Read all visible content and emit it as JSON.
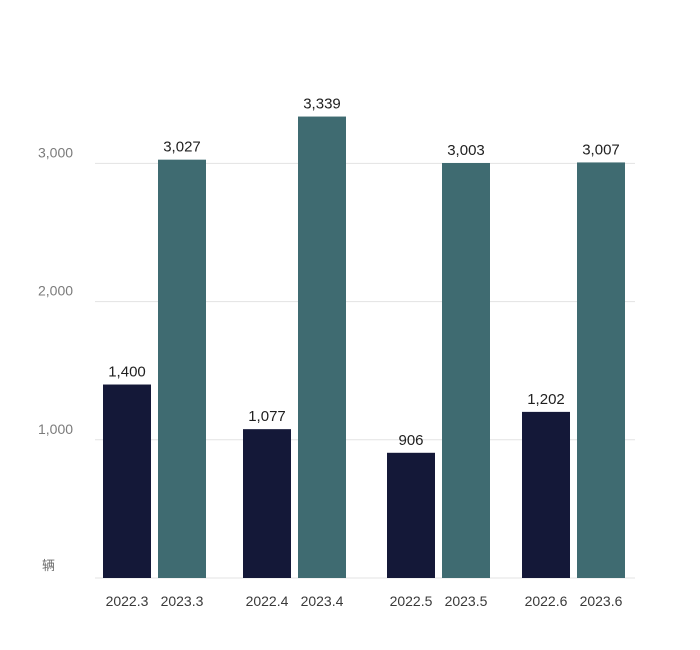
{
  "chart_data": {
    "type": "bar",
    "unit_label": "辆",
    "ylim": [
      0,
      3500
    ],
    "y_ticks": [
      {
        "value": 1000,
        "label": "1,000"
      },
      {
        "value": 2000,
        "label": "2,000"
      },
      {
        "value": 3000,
        "label": "3,000"
      }
    ],
    "grid": true,
    "legend": "none",
    "groups": [
      {
        "bars": [
          {
            "category": "2022.3",
            "value": 1400,
            "label": "1,400",
            "color": "#141838"
          },
          {
            "category": "2023.3",
            "value": 3027,
            "label": "3,027",
            "color": "#3f6b71"
          }
        ]
      },
      {
        "bars": [
          {
            "category": "2022.4",
            "value": 1077,
            "label": "1,077",
            "color": "#141838"
          },
          {
            "category": "2023.4",
            "value": 3339,
            "label": "3,339",
            "color": "#3f6b71"
          }
        ]
      },
      {
        "bars": [
          {
            "category": "2022.5",
            "value": 906,
            "label": "906",
            "color": "#141838"
          },
          {
            "category": "2023.5",
            "value": 3003,
            "label": "3,003",
            "color": "#3f6b71"
          }
        ]
      },
      {
        "bars": [
          {
            "category": "2022.6",
            "value": 1202,
            "label": "1,202",
            "color": "#141838"
          },
          {
            "category": "2023.6",
            "value": 3007,
            "label": "3,007",
            "color": "#3f6b71"
          }
        ]
      }
    ]
  }
}
